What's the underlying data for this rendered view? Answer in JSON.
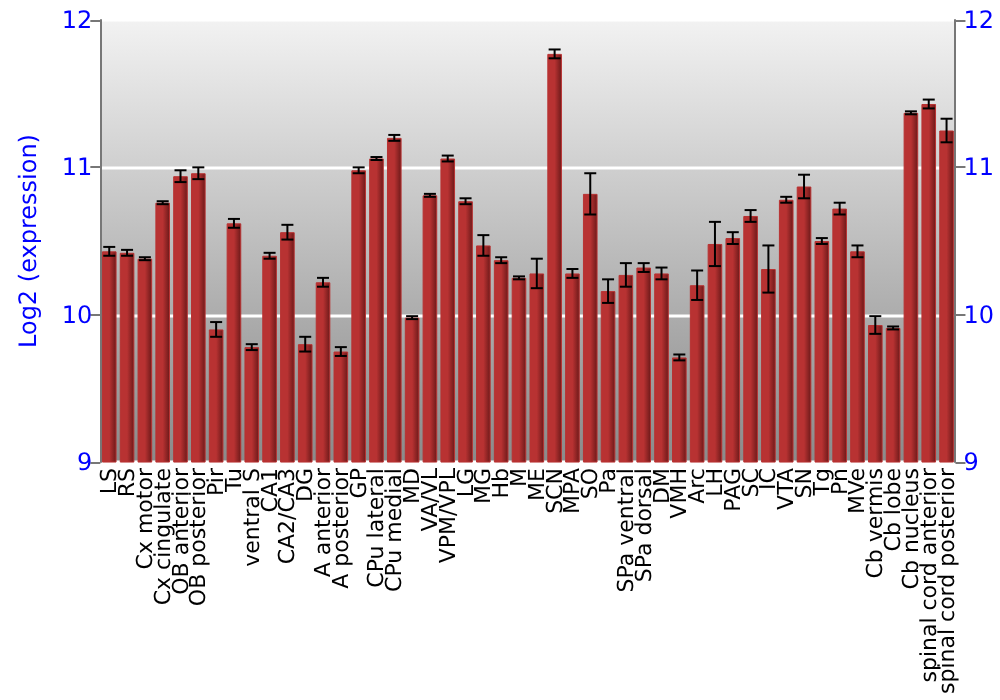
{
  "chart_data": {
    "type": "bar",
    "ylabel": "Log2 (expression)",
    "categories": [
      "LS",
      "RS",
      "Cx motor",
      "Cx cingulate",
      "OB anterior",
      "OB posterior",
      "Pir",
      "Tu",
      "ventral S",
      "CA1",
      "CA2/CA3",
      "DG",
      "A anterior",
      "A posterior",
      "GP",
      "CPu lateral",
      "CPu medial",
      "MD",
      "VA/VL",
      "VPM/VPL",
      "LG",
      "MG",
      "Hb",
      "M",
      "ME",
      "SCN",
      "MPA",
      "SO",
      "Pa",
      "SPa ventral",
      "SPa dorsal",
      "DM",
      "VMH",
      "Arc",
      "LH",
      "PAG",
      "SC",
      "IC",
      "VTA",
      "SN",
      "Tg",
      "Pn",
      "MVe",
      "Cb vermis",
      "Cb lobe",
      "Cb nucleus",
      "spinal cord anterior",
      "spinal cord posterior"
    ],
    "series": [
      {
        "color": "#b83232",
        "values": [
          10.43,
          10.42,
          10.38,
          10.76,
          10.94,
          10.96,
          9.9,
          10.62,
          9.78,
          10.4,
          10.56,
          9.8,
          10.22,
          9.75,
          10.98,
          11.06,
          11.2,
          9.98,
          10.81,
          11.06,
          10.77,
          10.47,
          10.37,
          10.25,
          10.28,
          11.77,
          10.28,
          10.82,
          10.16,
          10.27,
          10.32,
          10.28,
          9.71,
          10.2,
          10.48,
          10.52,
          10.67,
          10.31,
          10.78,
          10.87,
          10.5,
          10.72,
          10.43,
          9.93,
          9.91,
          11.37,
          11.43,
          11.25
        ],
        "errors": [
          0.03,
          0.02,
          0.01,
          0.01,
          0.04,
          0.04,
          0.05,
          0.03,
          0.02,
          0.02,
          0.05,
          0.05,
          0.03,
          0.03,
          0.02,
          0.01,
          0.02,
          0.01,
          0.01,
          0.02,
          0.02,
          0.07,
          0.02,
          0.01,
          0.1,
          0.03,
          0.03,
          0.14,
          0.08,
          0.08,
          0.03,
          0.04,
          0.02,
          0.1,
          0.15,
          0.04,
          0.04,
          0.16,
          0.02,
          0.08,
          0.02,
          0.04,
          0.04,
          0.06,
          0.01,
          0.01,
          0.03,
          0.08
        ]
      }
    ],
    "ylim": [
      9,
      12
    ],
    "yticks": [
      9,
      10,
      11,
      12
    ],
    "y2lim": [
      9,
      12
    ],
    "y2ticks": [
      9,
      10,
      11,
      12
    ],
    "grid": "y"
  }
}
